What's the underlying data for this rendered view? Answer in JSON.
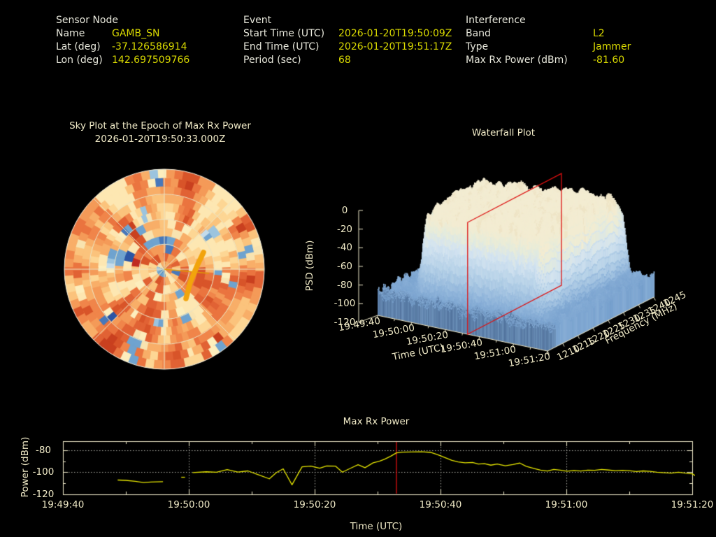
{
  "header": {
    "sensor": {
      "title": "Sensor Node",
      "rows": [
        {
          "label": "Name",
          "value": "GAMB_SN"
        },
        {
          "label": "Lat (deg)",
          "value": "-37.126586914"
        },
        {
          "label": "Lon (deg)",
          "value": "142.697509766"
        }
      ]
    },
    "event": {
      "title": "Event",
      "rows": [
        {
          "label": "Start Time (UTC)",
          "value": "2026-01-20T19:50:09Z"
        },
        {
          "label": "End Time (UTC)",
          "value": "2026-01-20T19:51:17Z"
        },
        {
          "label": "Period (sec)",
          "value": "68"
        }
      ]
    },
    "interference": {
      "title": "Interference",
      "rows": [
        {
          "label": "Band",
          "value": "L2"
        },
        {
          "label": "Type",
          "value": "Jammer"
        },
        {
          "label": "Max Rx Power (dBm)",
          "value": "-81.60"
        }
      ]
    }
  },
  "colors": {
    "text": "#e6e6da",
    "value_text": "#d9d900",
    "plot_text": "#efe9c6",
    "axis": "#eee8c8",
    "grid_dotted": "#aeaea6",
    "series_yellow": "#e6e600",
    "marker_red": "#dd1010",
    "track_orange": "#f2a40c"
  },
  "chart_data": [
    {
      "id": "skyplot",
      "type": "heatmap",
      "projection": "polar",
      "title": "Sky Plot at the Epoch of Max Rx Power",
      "subtitle": "2026-01-20T19:50:33.000Z",
      "legend_position": "none",
      "grid": {
        "rings_fraction": [
          0.25,
          0.5,
          0.75,
          1.0
        ],
        "spokes_deg": 45
      },
      "elevation_bands": 12,
      "sectors_by_band": [
        9,
        18,
        18,
        24,
        24,
        36,
        72,
        72,
        72,
        72,
        72,
        72
      ],
      "palette_orange": [
        "#c9401f",
        "#d85429",
        "#e16234",
        "#ea743f",
        "#f0854a",
        "#f49a58",
        "#f8ae68",
        "#fbc37c",
        "#fdd694",
        "#fde7b2"
      ],
      "palette_blue": [
        "#2c55a4",
        "#4878ba",
        "#6fa3cf",
        "#9cc4de",
        "#c3dbea"
      ],
      "palette_cream": [
        "#fdeebd",
        "#f8e3b0"
      ],
      "hot_cell": {
        "angle_deg": 17,
        "band": 3,
        "color": "#bf2b20"
      },
      "cold_cell": {
        "angle_deg": 15,
        "band": 4,
        "color": "#2c55a4"
      },
      "track": {
        "color": "#f2a40c",
        "width": 7.5,
        "points_local": [
          [
            200,
            120
          ],
          [
            191,
            139
          ],
          [
            181,
            163
          ],
          [
            175,
            186
          ]
        ]
      },
      "pointer_line": {
        "color": "#df9a06",
        "from_local": [
          144,
          144
        ],
        "to_local": [
          208,
          150
        ]
      },
      "note": "mostly red-orange field with scattered blue and cream cells; procedural"
    },
    {
      "id": "waterfall",
      "type": "area",
      "surface3d": true,
      "title": "Waterfall Plot",
      "zlabel": "PSD (dBm)",
      "xlabel": "Time (UTC)",
      "ylabel": "Frequency (MHz)",
      "zlim": [
        -120,
        0
      ],
      "z_ticks": [
        "0",
        "-20",
        "-40",
        "-60",
        "-80",
        "-100",
        "-120"
      ],
      "x_ticks": [
        "19:49:40",
        "19:50:00",
        "19:50:20",
        "19:50:40",
        "19:51:00",
        "19:51:20"
      ],
      "y_ticks": [
        "1210",
        "1215",
        "1220",
        "1225",
        "1230",
        "1235",
        "1240",
        "1245"
      ],
      "x_range_sec": [
        0,
        100
      ],
      "freq_range_mhz": [
        1210,
        1245
      ],
      "noise_floor_dbm": -100,
      "plateau_dbm": -12,
      "signal_time_window_sec": [
        14,
        89
      ],
      "signal_freq_window_mhz": [
        1213,
        1245
      ],
      "marker_plane": {
        "time": "19:50:33",
        "t_sec": 53,
        "color": "#dd1010"
      },
      "surface_colormap": [
        "#6690bf",
        "#739dcb",
        "#8fb4da",
        "#b7d2e8",
        "#d4e4f1",
        "#e7ecda",
        "#f3ecd2"
      ],
      "note": "elevated cream-topped plateau during event over light-blue noise terrain; procedural"
    },
    {
      "id": "max-rx-power",
      "type": "line",
      "title": "Max Rx Power",
      "xlabel": "Time (UTC)",
      "ylabel": "Power (dBm)",
      "ylim": [
        -120,
        -72
      ],
      "y_ticks": [
        {
          "v": -80,
          "label": "-80"
        },
        {
          "v": -100,
          "label": "-100"
        },
        {
          "v": -120,
          "label": "-120"
        }
      ],
      "x_ticks": [
        {
          "t": 0,
          "label": "19:49:40"
        },
        {
          "t": 20,
          "label": "19:50:00"
        },
        {
          "t": 40,
          "label": "19:50:20"
        },
        {
          "t": 60,
          "label": "19:50:40"
        },
        {
          "t": 80,
          "label": "19:51:00"
        },
        {
          "t": 100,
          "label": "19:51:20"
        }
      ],
      "x_minor_step_sec": 10,
      "grid_dotted_at": {
        "y": [
          -80,
          -100
        ],
        "x_sec": [
          20,
          40,
          60,
          80
        ]
      },
      "marker_line": {
        "t_sec": 53,
        "time": "19:50:33",
        "color": "#dd1010"
      },
      "series_color": "#e6e600",
      "t0_label": "19:49:40",
      "series_segments_t_dbm": [
        [
          [
            8.7,
            -107.0
          ],
          [
            10.0,
            -107.3
          ],
          [
            11.5,
            -108.2
          ],
          [
            12.8,
            -109.3
          ],
          [
            14.0,
            -108.8
          ],
          [
            15.9,
            -108.5
          ]
        ],
        [
          [
            18.8,
            -104.5
          ],
          [
            19.4,
            -104.5
          ]
        ],
        [
          [
            20.6,
            -100.3
          ],
          [
            22.8,
            -99.6
          ],
          [
            24.4,
            -100.0
          ],
          [
            26.1,
            -97.6
          ],
          [
            27.8,
            -99.8
          ],
          [
            29.4,
            -98.8
          ],
          [
            31.1,
            -102.3
          ],
          [
            32.8,
            -105.9
          ],
          [
            33.9,
            -100.4
          ],
          [
            35.0,
            -96.9
          ],
          [
            36.4,
            -111.3
          ],
          [
            38.0,
            -95.1
          ],
          [
            39.4,
            -94.5
          ],
          [
            40.8,
            -96.4
          ],
          [
            41.9,
            -94.3
          ],
          [
            43.3,
            -94.4
          ],
          [
            44.4,
            -99.9
          ],
          [
            45.8,
            -96.1
          ],
          [
            46.9,
            -93.2
          ],
          [
            48.0,
            -95.9
          ],
          [
            49.3,
            -91.5
          ],
          [
            50.3,
            -90.0
          ],
          [
            51.2,
            -88.0
          ],
          [
            52.1,
            -85.5
          ],
          [
            53.0,
            -82.5
          ],
          [
            54.0,
            -81.9
          ],
          [
            55.5,
            -81.7
          ],
          [
            57.0,
            -81.6
          ],
          [
            58.5,
            -82.1
          ],
          [
            59.5,
            -84.0
          ],
          [
            60.7,
            -86.8
          ],
          [
            61.8,
            -89.3
          ],
          [
            62.8,
            -90.7
          ],
          [
            63.9,
            -91.5
          ],
          [
            65.1,
            -91.1
          ],
          [
            66.0,
            -92.6
          ],
          [
            67.0,
            -92.3
          ],
          [
            68.0,
            -93.6
          ],
          [
            69.0,
            -92.6
          ],
          [
            70.3,
            -94.2
          ],
          [
            71.5,
            -93.0
          ],
          [
            72.6,
            -91.7
          ],
          [
            73.6,
            -94.6
          ],
          [
            74.8,
            -96.5
          ],
          [
            75.9,
            -98.1
          ],
          [
            77.0,
            -98.9
          ],
          [
            78.0,
            -97.5
          ],
          [
            79.0,
            -98.1
          ],
          [
            80.1,
            -99.0
          ],
          [
            81.2,
            -98.4
          ],
          [
            82.3,
            -98.9
          ],
          [
            83.4,
            -98.1
          ],
          [
            84.5,
            -98.3
          ],
          [
            85.6,
            -97.5
          ],
          [
            86.7,
            -98.0
          ],
          [
            87.8,
            -98.6
          ],
          [
            88.9,
            -98.2
          ],
          [
            90.0,
            -98.5
          ],
          [
            91.1,
            -99.4
          ],
          [
            92.2,
            -98.8
          ],
          [
            93.3,
            -99.2
          ],
          [
            94.4,
            -100.0
          ],
          [
            95.6,
            -100.4
          ],
          [
            96.7,
            -100.8
          ],
          [
            97.8,
            -100.0
          ],
          [
            98.9,
            -100.8
          ],
          [
            100.0,
            -101.4
          ],
          [
            100.9,
            -104.3
          ]
        ]
      ]
    }
  ]
}
